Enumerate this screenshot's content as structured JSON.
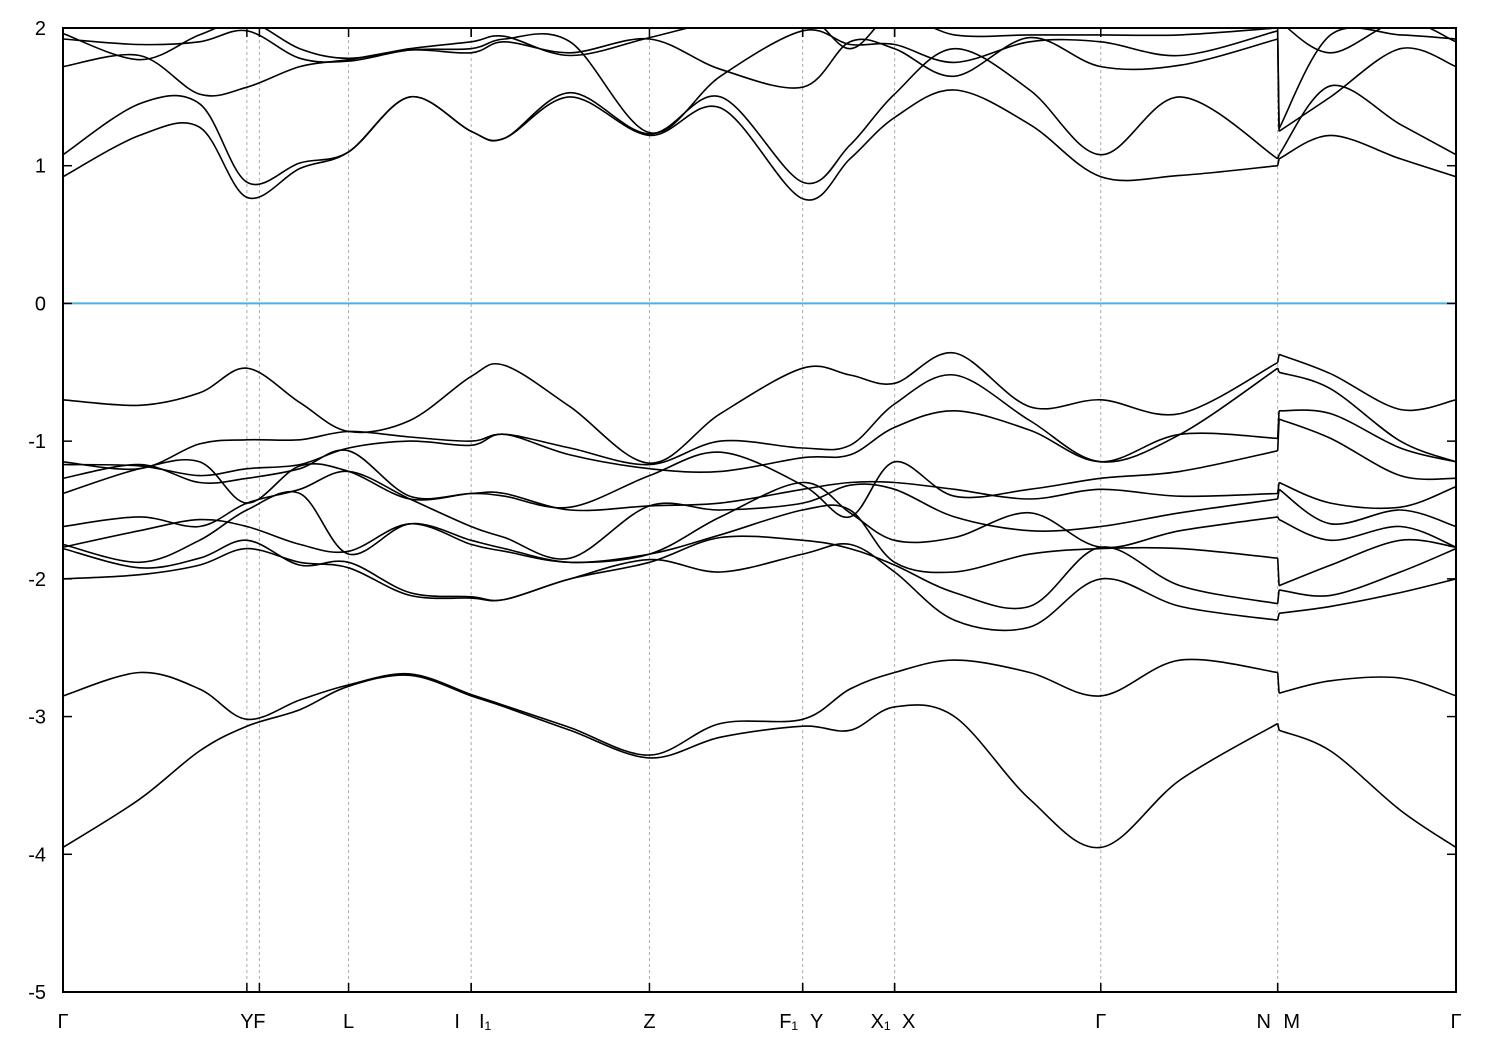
{
  "chart_data": {
    "type": "line",
    "title": "",
    "xlabel": "",
    "ylabel": "",
    "ylim": [
      -5,
      2
    ],
    "xlim": [
      0,
      1
    ],
    "yticks": [
      -5,
      -4,
      -3,
      -2,
      -1,
      0,
      1,
      2
    ],
    "grid": "vertical dashed lines at high-symmetry points",
    "fermi_level": 0,
    "fermi_color": "#4cb0e0",
    "band_color": "#000000",
    "high_symmetry_points": [
      {
        "k": 0.0,
        "label": "Γ"
      },
      {
        "k": 0.132,
        "label": "Y"
      },
      {
        "k": 0.141,
        "label": "F"
      },
      {
        "k": 0.205,
        "label": "L"
      },
      {
        "k": 0.293,
        "label": "I"
      },
      {
        "k": 0.293,
        "label": "I₁"
      },
      {
        "k": 0.421,
        "label": "Z"
      },
      {
        "k": 0.531,
        "label": "F₁"
      },
      {
        "k": 0.531,
        "label": "Y"
      },
      {
        "k": 0.597,
        "label": "X₁"
      },
      {
        "k": 0.597,
        "label": "X"
      },
      {
        "k": 0.745,
        "label": "Γ"
      },
      {
        "k": 0.872,
        "label": "N"
      },
      {
        "k": 0.872,
        "label": "M"
      },
      {
        "k": 1.0,
        "label": "Γ"
      }
    ],
    "k": [
      0,
      0.055,
      0.098,
      0.132,
      0.17,
      0.205,
      0.249,
      0.293,
      0.317,
      0.364,
      0.421,
      0.472,
      0.531,
      0.565,
      0.597,
      0.64,
      0.694,
      0.745,
      0.802,
      0.872,
      0.873,
      0.91,
      0.96,
      1.0
    ],
    "series": [
      {
        "name": "band-1",
        "values": [
          -3.95,
          -3.6,
          -3.25,
          -3.07,
          -2.95,
          -2.78,
          -2.7,
          -2.85,
          -2.93,
          -3.1,
          -3.3,
          -3.15,
          -3.07,
          -3.1,
          -2.93,
          -3.0,
          -3.6,
          -3.95,
          -3.46,
          -3.05,
          -3.1,
          -3.25,
          -3.68,
          -3.95
        ]
      },
      {
        "name": "band-2",
        "values": [
          -2.85,
          -2.68,
          -2.8,
          -3.02,
          -2.88,
          -2.77,
          -2.69,
          -2.84,
          -2.92,
          -3.08,
          -3.28,
          -3.05,
          -3.02,
          -2.8,
          -2.68,
          -2.59,
          -2.68,
          -2.85,
          -2.59,
          -2.68,
          -2.83,
          -2.74,
          -2.72,
          -2.85
        ]
      },
      {
        "name": "band-3",
        "values": [
          -2.0,
          -1.97,
          -1.9,
          -1.78,
          -1.88,
          -1.92,
          -2.12,
          -2.14,
          -2.15,
          -2.0,
          -1.86,
          -1.95,
          -1.82,
          -1.75,
          -1.95,
          -2.3,
          -2.35,
          -2.0,
          -2.2,
          -2.3,
          -2.25,
          -2.2,
          -2.1,
          -2.0
        ]
      },
      {
        "name": "band-4",
        "values": [
          -1.78,
          -1.92,
          -1.85,
          -1.72,
          -1.9,
          -1.88,
          -2.1,
          -2.13,
          -2.15,
          -2.0,
          -1.88,
          -1.7,
          -1.72,
          -1.78,
          -1.9,
          -2.1,
          -2.2,
          -1.77,
          -2.05,
          -2.18,
          -2.08,
          -2.12,
          -1.95,
          -1.78
        ]
      },
      {
        "name": "band-5",
        "values": [
          -1.75,
          -1.88,
          -1.72,
          -1.5,
          -1.38,
          -1.82,
          -1.6,
          -1.72,
          -1.78,
          -1.88,
          -1.82,
          -1.68,
          -1.5,
          -1.5,
          -1.88,
          -1.95,
          -1.82,
          -1.78,
          -1.78,
          -1.85,
          -2.05,
          -1.9,
          -1.72,
          -1.77
        ]
      },
      {
        "name": "band-6",
        "values": [
          -1.77,
          -1.65,
          -1.57,
          -1.62,
          -1.75,
          -1.8,
          -1.6,
          -1.75,
          -1.8,
          -1.88,
          -1.82,
          -1.55,
          -1.3,
          -1.52,
          -1.72,
          -1.7,
          -1.52,
          -1.77,
          -1.65,
          -1.55,
          -1.57,
          -1.72,
          -1.62,
          -1.77
        ]
      },
      {
        "name": "band-7",
        "values": [
          -1.62,
          -1.55,
          -1.62,
          -1.45,
          -1.35,
          -1.22,
          -1.42,
          -1.62,
          -1.7,
          -1.85,
          -1.47,
          -1.5,
          -1.45,
          -1.32,
          -1.35,
          -1.55,
          -1.65,
          -1.62,
          -1.52,
          -1.42,
          -1.35,
          -1.6,
          -1.5,
          -1.62
        ]
      },
      {
        "name": "band-8",
        "values": [
          -1.38,
          -1.2,
          -1.15,
          -1.45,
          -1.18,
          -1.22,
          -1.42,
          -1.38,
          -1.38,
          -1.5,
          -1.47,
          -1.45,
          -1.35,
          -1.3,
          -1.3,
          -1.35,
          -1.42,
          -1.35,
          -1.4,
          -1.38,
          -1.3,
          -1.45,
          -1.48,
          -1.33
        ]
      },
      {
        "name": "band-9",
        "values": [
          -1.27,
          -1.17,
          -1.3,
          -1.27,
          -1.2,
          -1.07,
          -1.4,
          -1.38,
          -1.4,
          -1.48,
          -1.25,
          -1.08,
          -1.32,
          -1.55,
          -1.15,
          -1.4,
          -1.35,
          -1.27,
          -1.22,
          -1.07,
          -0.84,
          -0.98,
          -1.25,
          -1.27
        ]
      },
      {
        "name": "band-10",
        "values": [
          -1.17,
          -1.18,
          -1.25,
          -1.2,
          -1.17,
          -1.05,
          -1.0,
          -1.03,
          -0.95,
          -1.1,
          -1.2,
          -1.22,
          -1.12,
          -1.1,
          -0.9,
          -0.78,
          -0.92,
          -1.15,
          -0.95,
          -0.98,
          -0.78,
          -0.8,
          -1.05,
          -1.15
        ]
      },
      {
        "name": "band-11",
        "values": [
          -1.15,
          -1.2,
          -1.02,
          -0.99,
          -0.99,
          -0.93,
          -0.97,
          -1.0,
          -0.95,
          -1.05,
          -1.17,
          -1.0,
          -1.05,
          -1.03,
          -0.73,
          -0.52,
          -0.85,
          -1.15,
          -0.95,
          -0.47,
          -0.5,
          -0.62,
          -1.0,
          -1.15
        ]
      },
      {
        "name": "band-12",
        "values": [
          -0.7,
          -0.74,
          -0.65,
          -0.47,
          -0.72,
          -0.93,
          -0.85,
          -0.53,
          -0.45,
          -0.75,
          -1.16,
          -0.8,
          -0.47,
          -0.52,
          -0.58,
          -0.36,
          -0.75,
          -0.7,
          -0.8,
          -0.43,
          -0.37,
          -0.51,
          -0.77,
          -0.7
        ]
      },
      {
        "name": "band-13",
        "values": [
          0.92,
          1.22,
          1.28,
          0.77,
          0.98,
          1.1,
          1.5,
          1.25,
          1.2,
          1.5,
          1.22,
          1.42,
          0.76,
          1.05,
          1.35,
          1.55,
          1.3,
          0.92,
          0.93,
          1.0,
          1.05,
          1.22,
          1.05,
          0.92
        ]
      },
      {
        "name": "band-14",
        "values": [
          1.08,
          1.45,
          1.45,
          0.88,
          1.02,
          1.1,
          1.5,
          1.25,
          1.2,
          1.53,
          1.23,
          1.5,
          0.88,
          1.15,
          1.52,
          1.85,
          1.55,
          1.08,
          1.5,
          1.05,
          1.08,
          1.58,
          1.3,
          1.08
        ]
      },
      {
        "name": "band-15",
        "values": [
          1.72,
          1.8,
          1.52,
          1.57,
          1.72,
          1.77,
          1.84,
          1.82,
          1.9,
          1.82,
          1.92,
          1.7,
          1.57,
          1.9,
          1.85,
          1.65,
          1.93,
          1.72,
          1.73,
          1.92,
          1.25,
          1.5,
          1.85,
          1.72
        ]
      },
      {
        "name": "band-16",
        "values": [
          1.92,
          1.88,
          1.9,
          1.98,
          1.78,
          1.76,
          1.84,
          1.85,
          1.92,
          1.9,
          1.24,
          1.65,
          1.98,
          1.88,
          1.88,
          1.75,
          1.9,
          1.9,
          1.8,
          1.98,
          1.27,
          1.95,
          1.95,
          1.92
        ]
      },
      {
        "name": "band-17",
        "values": [
          1.96,
          1.77,
          1.95,
          2.05,
          1.85,
          1.78,
          1.85,
          1.9,
          1.94,
          1.8,
          1.93,
          2.05,
          2.1,
          1.85,
          2.1,
          1.95,
          1.95,
          1.95,
          1.95,
          2.0,
          2.05,
          1.82,
          2.05,
          1.9
        ]
      }
    ]
  }
}
